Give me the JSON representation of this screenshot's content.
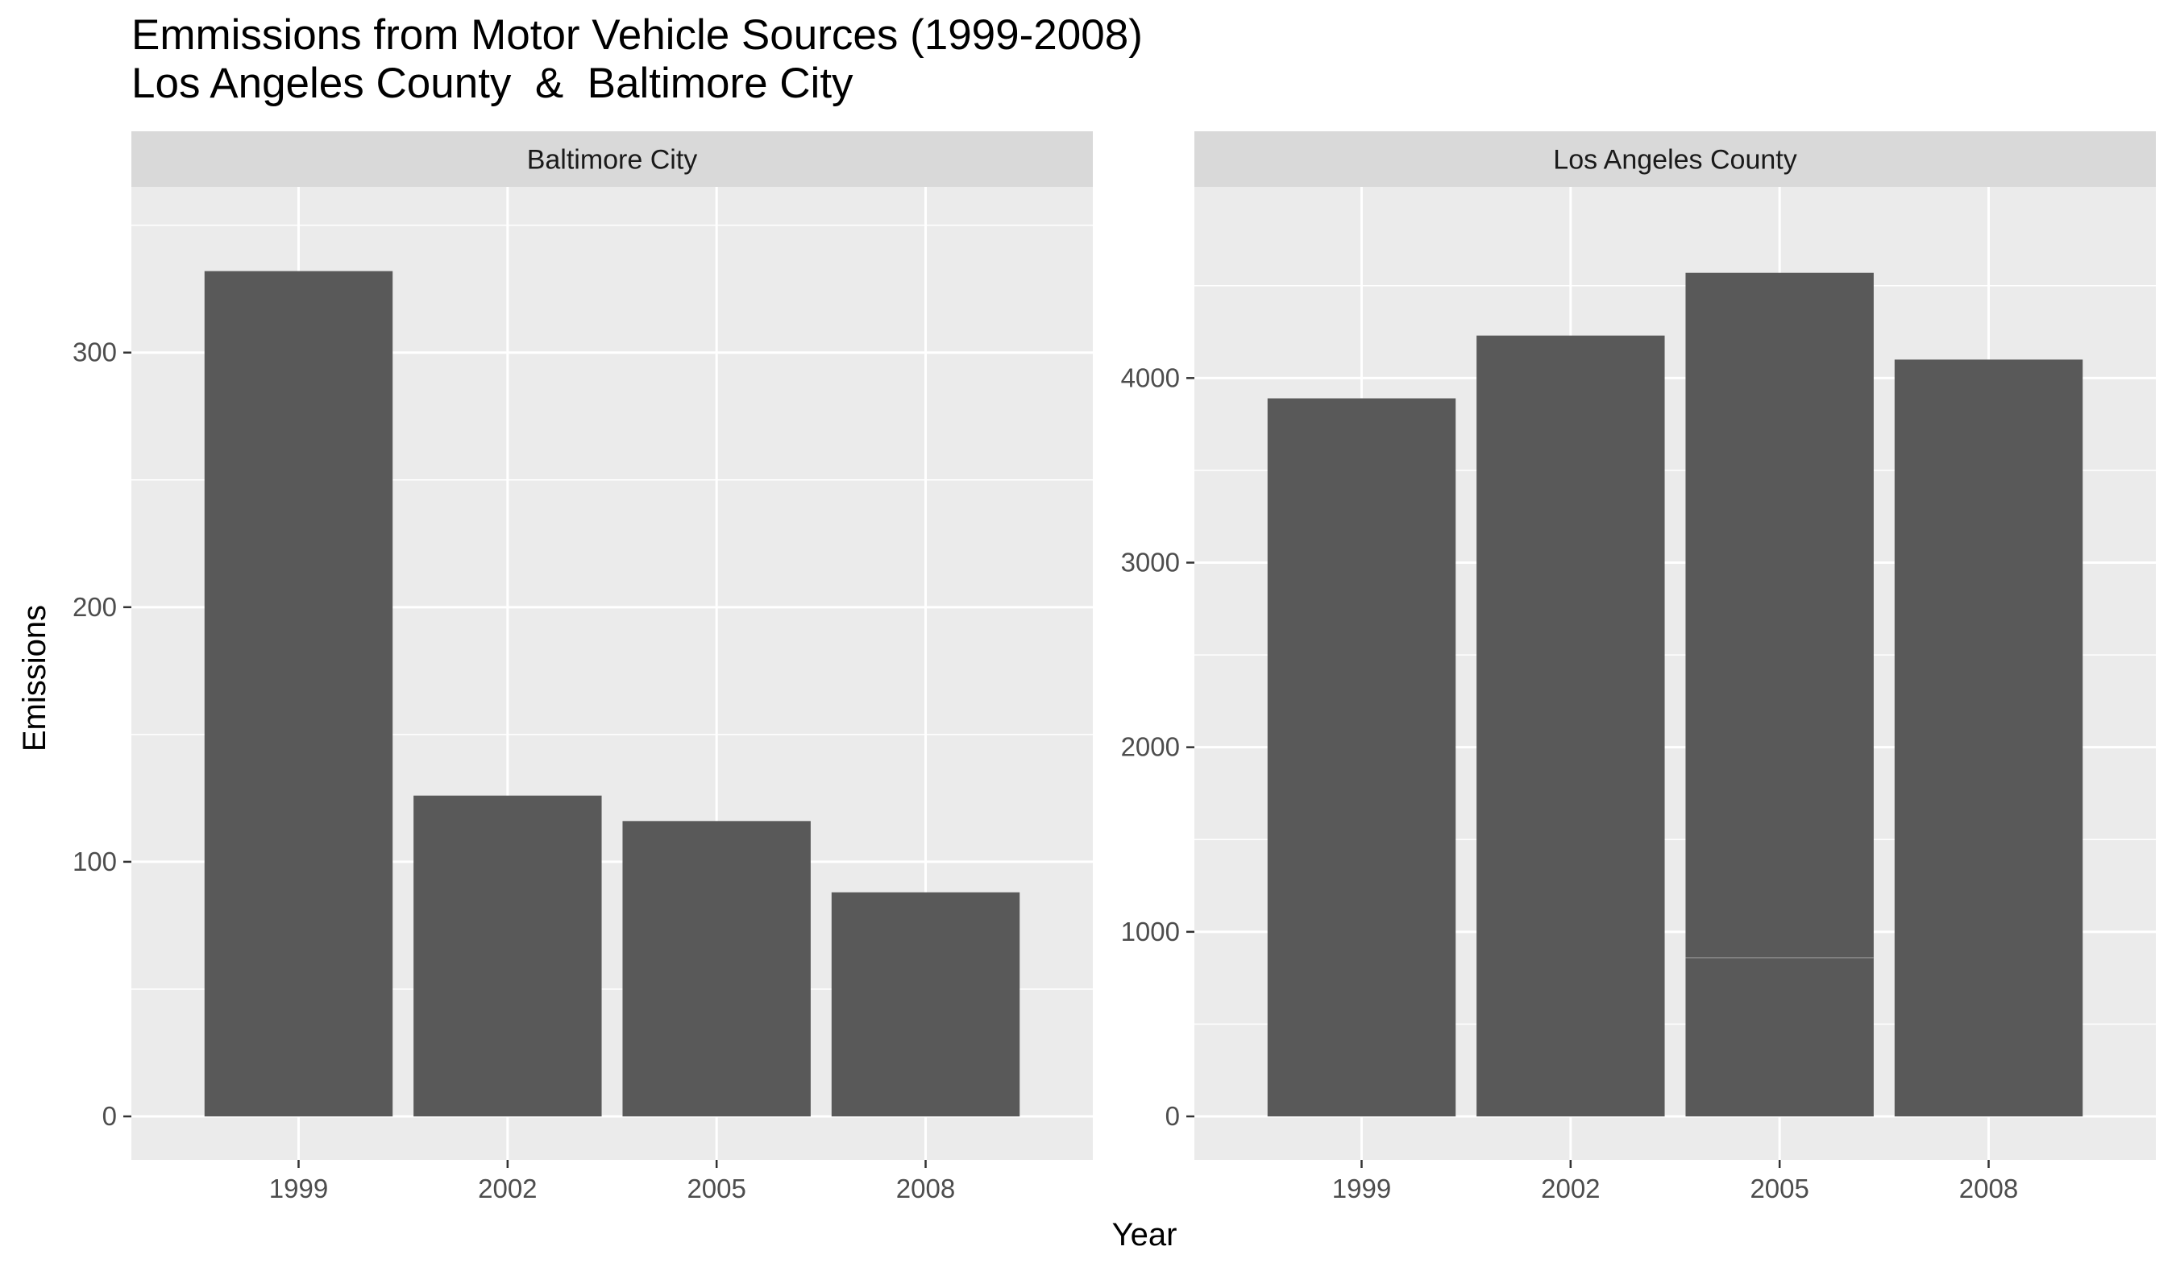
{
  "chart_data": {
    "type": "bar",
    "title": "Emmissions from Motor Vehicle Sources (1999-2008)",
    "subtitle": "Los Angeles County  &  Baltimore City",
    "xlabel": "Year",
    "ylabel": "Emissions",
    "grid": true,
    "colors": {
      "bar": "#595959",
      "panel_bg": "#ebebeb",
      "strip_bg": "#d9d9d9",
      "grid": "#ffffff",
      "tick_text": "#4d4d4d"
    },
    "facets": [
      {
        "strip_label": "Baltimore City",
        "categories": [
          "1999",
          "2002",
          "2005",
          "2008"
        ],
        "values": [
          332,
          126,
          116,
          88
        ],
        "ylim": [
          0,
          348
        ],
        "yticks": [
          0,
          100,
          200,
          300
        ],
        "ytick_labels": [
          "0",
          "100",
          "200",
          "300"
        ]
      },
      {
        "strip_label": "Los Angeles County",
        "categories": [
          "1999",
          "2002",
          "2005",
          "2008"
        ],
        "values": [
          3890,
          4230,
          4570,
          4100
        ],
        "segment_breaks": [
          null,
          null,
          860,
          null
        ],
        "ylim": [
          0,
          4800
        ],
        "yticks": [
          0,
          1000,
          2000,
          3000,
          4000
        ],
        "ytick_labels": [
          "0",
          "1000",
          "2000",
          "3000",
          "4000"
        ]
      }
    ]
  }
}
